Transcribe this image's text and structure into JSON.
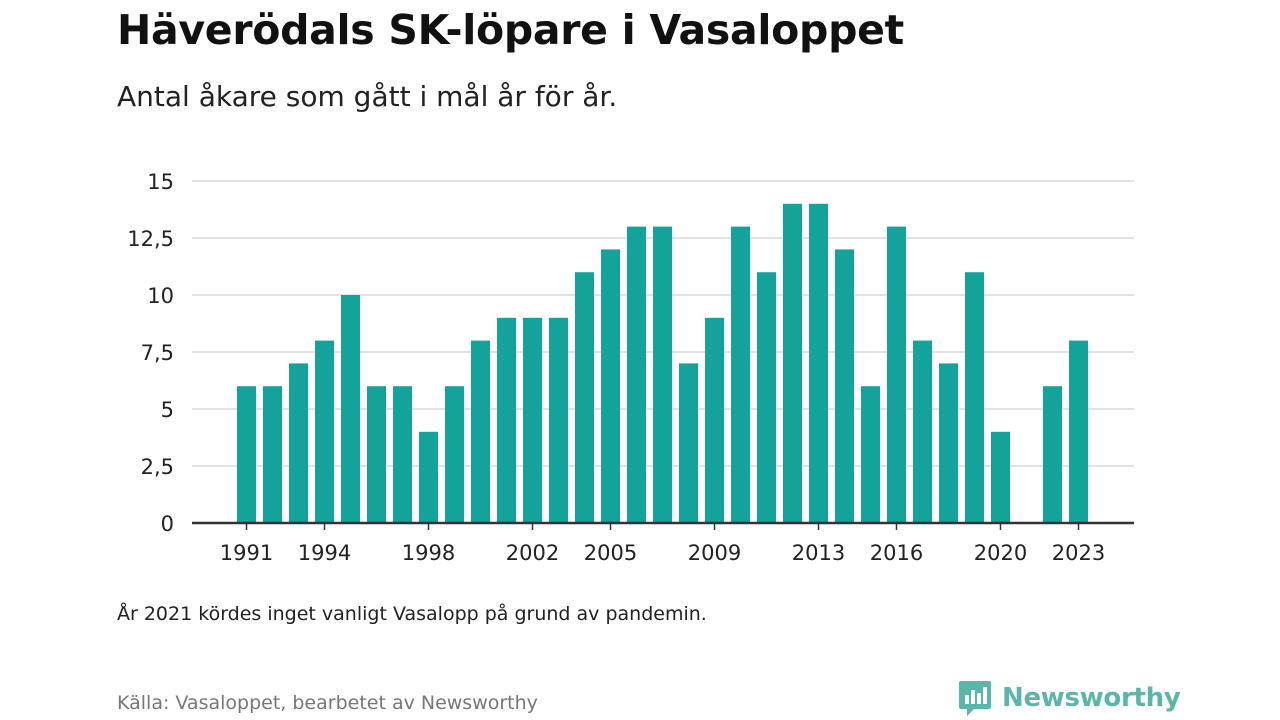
{
  "header": {
    "title": "Häverödals SK-löpare i Vasaloppet",
    "subtitle": "Antal åkare som gått i mål år för år."
  },
  "footer": {
    "note": "År 2021 kördes inget vanligt Vasalopp på grund av pandemin.",
    "source": "Källa: Vasaloppet, bearbetet av Newsworthy",
    "logo_text": "Newsworthy",
    "logo_icon": "newsworthy-logo-icon"
  },
  "colors": {
    "bar": "#14a39a",
    "grid": "#d9d9d9",
    "axis": "#333333",
    "logo": "#5bb5ab"
  },
  "chart_data": {
    "type": "bar",
    "title": "Häverödals SK-löpare i Vasaloppet",
    "subtitle": "Antal åkare som gått i mål år för år.",
    "xlabel": "",
    "ylabel": "",
    "categories": [
      1991,
      1992,
      1993,
      1994,
      1995,
      1996,
      1997,
      1998,
      1999,
      2000,
      2001,
      2002,
      2003,
      2004,
      2005,
      2006,
      2007,
      2008,
      2009,
      2010,
      2011,
      2012,
      2013,
      2014,
      2015,
      2016,
      2017,
      2018,
      2019,
      2020,
      2021,
      2022,
      2023
    ],
    "values": [
      6,
      6,
      7,
      8,
      10,
      6,
      6,
      4,
      6,
      8,
      9,
      9,
      9,
      11,
      12,
      13,
      13,
      7,
      9,
      13,
      11,
      14,
      14,
      12,
      6,
      13,
      8,
      7,
      11,
      4,
      null,
      6,
      8
    ],
    "ylim": [
      0,
      15
    ],
    "y_ticks": [
      0,
      2.5,
      5,
      7.5,
      10,
      12.5,
      15
    ],
    "y_tick_labels": [
      "0",
      "2,5",
      "5",
      "7,5",
      "10",
      "12,5",
      "15"
    ],
    "x_tick_labels": [
      "1991",
      "1994",
      "1998",
      "2002",
      "2005",
      "2009",
      "2013",
      "2016",
      "2020",
      "2023"
    ],
    "grid": true,
    "legend": "none"
  }
}
